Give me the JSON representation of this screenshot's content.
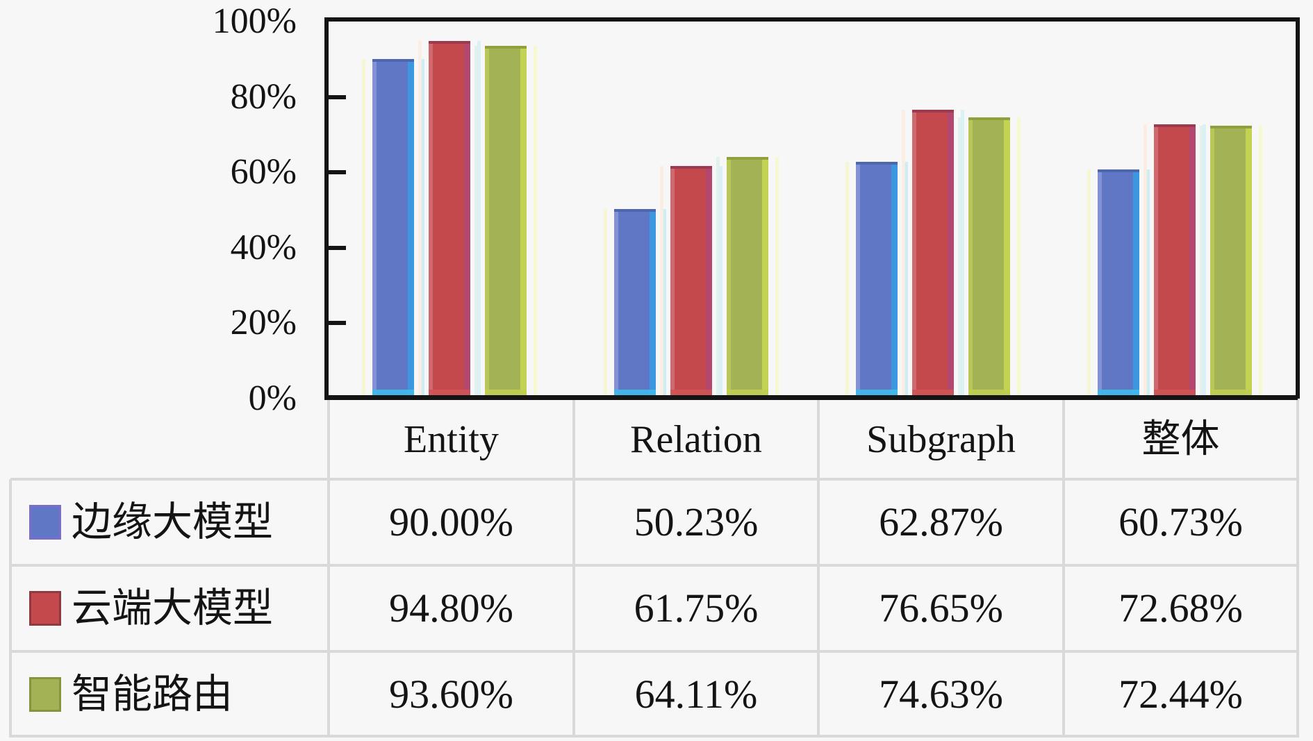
{
  "chart_data": {
    "type": "bar",
    "title": "",
    "categories": [
      "Entity",
      "Relation",
      "Subgraph",
      "整体"
    ],
    "series": [
      {
        "name": "边缘大模型",
        "color": "#6077C6",
        "values": [
          90.0,
          50.23,
          62.87,
          60.73
        ]
      },
      {
        "name": "云端大模型",
        "color": "#C4494C",
        "values": [
          94.8,
          61.75,
          76.65,
          72.68
        ]
      },
      {
        "name": "智能路由",
        "color": "#A2B254",
        "values": [
          93.6,
          64.11,
          74.63,
          72.44
        ]
      }
    ],
    "xlabel": "",
    "ylabel": "",
    "ylim": [
      0,
      100
    ],
    "yticks": [
      "100%",
      "80%",
      "60%",
      "40%",
      "20%",
      "0%"
    ],
    "grid": false,
    "legend_position": "table-rows-below-chart"
  },
  "palette": {
    "axis": "#141414",
    "separator": "#d9d9d9",
    "background": "#f7f7f7",
    "series_styles": [
      {
        "main": "#6077C6",
        "light": "#8292D4",
        "bright": "#3B97DF",
        "cap": "#4D66AE",
        "glow_left": "#F6F6CC",
        "glow_right": "#C3ECF7",
        "foot": "#41B9EA",
        "swatch_border": "#7A6FC8"
      },
      {
        "main": "#C4494C",
        "light": "#CE6A6E",
        "bright": "#B4476F",
        "cap": "#9C3A50",
        "glow_left": "#FBEBDE",
        "glow_right": "#D5F1F6",
        "foot": "#CE5456",
        "swatch_border": "#8F3A40"
      },
      {
        "main": "#A2B254",
        "light": "#B8C758",
        "bright": "#C4D253",
        "cap": "#8FA03C",
        "glow_left": "#DDF0EC",
        "glow_right": "#F6F8C8",
        "foot": "#C0CE52",
        "swatch_border": "#87933D"
      }
    ]
  },
  "table": {
    "headers": [
      "Entity",
      "Relation",
      "Subgraph",
      "整体"
    ],
    "rows": [
      {
        "label": "边缘大模型",
        "values": [
          "90.00%",
          "50.23%",
          "62.87%",
          "60.73%"
        ]
      },
      {
        "label": "云端大模型",
        "values": [
          "94.80%",
          "61.75%",
          "76.65%",
          "72.68%"
        ]
      },
      {
        "label": "智能路由",
        "values": [
          "93.60%",
          "64.11%",
          "74.63%",
          "72.44%"
        ]
      }
    ]
  }
}
